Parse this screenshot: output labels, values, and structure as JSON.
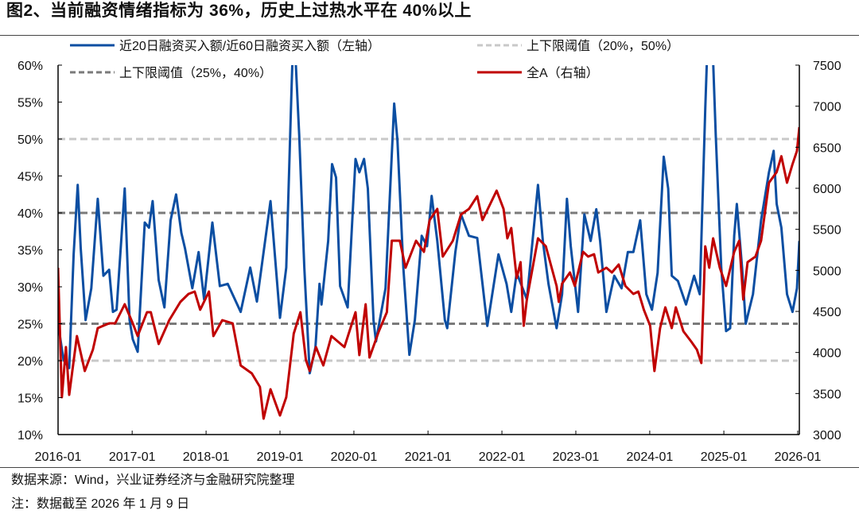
{
  "header": {
    "title": "图2、当前融资情绪指标为 36%，历史上过热水平在 40%以上"
  },
  "footer": {
    "source": "数据来源：Wind，兴业证券经济与金融研究院整理",
    "note": "注：数据截至 2026 年 1 月 9 日"
  },
  "colors": {
    "blue": "#0b4ea2",
    "red": "#c00000",
    "light_gray": "#c8c8c8",
    "dark_gray": "#7a7a7a"
  },
  "chart_data": {
    "type": "line",
    "title": "",
    "xlabel": "",
    "ylabel": "",
    "legend_placement": "top",
    "grid": false,
    "x_ticks": [
      "2016-01",
      "2017-01",
      "2018-01",
      "2019-01",
      "2020-01",
      "2021-01",
      "2022-01",
      "2023-01",
      "2024-01",
      "2025-01",
      "2026-01"
    ],
    "ylim_left": [
      10,
      60
    ],
    "y_ticks_left": [
      "10%",
      "15%",
      "20%",
      "25%",
      "30%",
      "35%",
      "40%",
      "45%",
      "50%",
      "55%",
      "60%"
    ],
    "ylim_right": [
      3000,
      7500
    ],
    "y_ticks_right": [
      "3000",
      "3500",
      "4000",
      "4500",
      "5000",
      "5500",
      "6000",
      "6500",
      "7000",
      "7500"
    ],
    "thresholds": [
      {
        "name": "上下限阈值（20%，50%）",
        "values": [
          20,
          50
        ],
        "style": "light-dashed"
      },
      {
        "name": "上下限阈值（25%，40%）",
        "values": [
          25,
          40
        ],
        "style": "dark-dashed"
      }
    ],
    "series": [
      {
        "name": "近20日融资买入额/近60日融资买入额（左轴）",
        "axis": "left",
        "unit": "%",
        "points": [
          [
            "2016-01-01",
            25.0
          ],
          [
            "2016-01-28",
            20.1
          ],
          [
            "2016-02-25",
            19.0
          ],
          [
            "2016-03-18",
            34.4
          ],
          [
            "2016-04-07",
            43.8
          ],
          [
            "2016-04-22",
            35.2
          ],
          [
            "2016-05-16",
            25.5
          ],
          [
            "2016-06-13",
            29.8
          ],
          [
            "2016-07-15",
            41.9
          ],
          [
            "2016-08-12",
            31.5
          ],
          [
            "2016-09-09",
            32.3
          ],
          [
            "2016-09-28",
            26.6
          ],
          [
            "2016-10-16",
            26.9
          ],
          [
            "2016-11-25",
            43.3
          ],
          [
            "2016-12-19",
            25.5
          ],
          [
            "2017-01-04",
            22.9
          ],
          [
            "2017-01-28",
            21.2
          ],
          [
            "2017-03-04",
            38.7
          ],
          [
            "2017-03-25",
            38.0
          ],
          [
            "2017-04-12",
            41.6
          ],
          [
            "2017-05-12",
            30.9
          ],
          [
            "2017-06-09",
            27.2
          ],
          [
            "2017-07-10",
            39.0
          ],
          [
            "2017-08-06",
            42.5
          ],
          [
            "2017-09-01",
            37.3
          ],
          [
            "2017-09-19",
            35.2
          ],
          [
            "2017-10-25",
            29.8
          ],
          [
            "2017-11-25",
            34.7
          ],
          [
            "2017-12-22",
            28.3
          ],
          [
            "2018-02-01",
            38.7
          ],
          [
            "2018-03-10",
            30.1
          ],
          [
            "2018-04-18",
            30.4
          ],
          [
            "2018-06-21",
            26.6
          ],
          [
            "2018-08-07",
            32.6
          ],
          [
            "2018-09-09",
            28.0
          ],
          [
            "2018-11-15",
            41.6
          ],
          [
            "2019-01-01",
            25.8
          ],
          [
            "2019-02-01",
            32.6
          ],
          [
            "2019-02-28",
            57.7
          ],
          [
            "2019-03-10",
            66.0
          ],
          [
            "2019-04-06",
            50.5
          ],
          [
            "2019-05-01",
            32.6
          ],
          [
            "2019-05-28",
            18.3
          ],
          [
            "2019-06-25",
            21.8
          ],
          [
            "2019-07-15",
            30.4
          ],
          [
            "2019-07-25",
            27.6
          ],
          [
            "2019-08-27",
            36.2
          ],
          [
            "2019-09-15",
            46.6
          ],
          [
            "2019-10-05",
            44.8
          ],
          [
            "2019-10-25",
            30.1
          ],
          [
            "2019-12-01",
            27.2
          ],
          [
            "2020-01-09",
            47.3
          ],
          [
            "2020-01-28",
            45.5
          ],
          [
            "2020-02-20",
            47.3
          ],
          [
            "2020-03-10",
            43.3
          ],
          [
            "2020-04-07",
            25.5
          ],
          [
            "2020-04-19",
            22.6
          ],
          [
            "2020-06-05",
            29.8
          ],
          [
            "2020-07-18",
            54.8
          ],
          [
            "2020-08-03",
            49.8
          ],
          [
            "2020-09-01",
            32.6
          ],
          [
            "2020-10-01",
            20.8
          ],
          [
            "2020-10-28",
            25.5
          ],
          [
            "2020-12-01",
            36.9
          ],
          [
            "2020-12-27",
            35.5
          ],
          [
            "2021-01-19",
            42.3
          ],
          [
            "2021-02-16",
            36.2
          ],
          [
            "2021-03-25",
            25.5
          ],
          [
            "2021-04-06",
            24.4
          ],
          [
            "2021-05-16",
            34.7
          ],
          [
            "2021-06-13",
            39.8
          ],
          [
            "2021-07-22",
            36.9
          ],
          [
            "2021-09-01",
            36.6
          ],
          [
            "2021-10-21",
            24.7
          ],
          [
            "2021-12-15",
            34.4
          ],
          [
            "2022-01-24",
            30.4
          ],
          [
            "2022-02-16",
            26.6
          ],
          [
            "2022-03-15",
            31.9
          ],
          [
            "2022-05-04",
            28.3
          ],
          [
            "2022-06-28",
            43.8
          ],
          [
            "2022-07-22",
            36.2
          ],
          [
            "2022-08-19",
            30.4
          ],
          [
            "2022-09-28",
            24.4
          ],
          [
            "2022-10-25",
            29.0
          ],
          [
            "2022-11-18",
            41.9
          ],
          [
            "2022-12-07",
            35.5
          ],
          [
            "2023-01-12",
            26.6
          ],
          [
            "2023-02-12",
            39.8
          ],
          [
            "2023-03-15",
            36.2
          ],
          [
            "2023-04-12",
            40.5
          ],
          [
            "2023-05-01",
            36.2
          ],
          [
            "2023-06-01",
            26.6
          ],
          [
            "2023-07-10",
            31.5
          ],
          [
            "2023-08-15",
            29.8
          ],
          [
            "2023-09-15",
            34.7
          ],
          [
            "2023-10-12",
            34.7
          ],
          [
            "2023-11-15",
            39.0
          ],
          [
            "2023-12-15",
            29.0
          ],
          [
            "2024-01-12",
            26.9
          ],
          [
            "2024-02-09",
            31.9
          ],
          [
            "2024-03-10",
            47.6
          ],
          [
            "2024-04-01",
            43.3
          ],
          [
            "2024-04-19",
            31.5
          ],
          [
            "2024-05-19",
            30.8
          ],
          [
            "2024-06-28",
            27.6
          ],
          [
            "2024-08-07",
            31.5
          ],
          [
            "2024-09-04",
            29.0
          ],
          [
            "2024-10-01",
            54.1
          ],
          [
            "2024-10-16",
            66.0
          ],
          [
            "2024-11-06",
            63.0
          ],
          [
            "2024-11-22",
            50.5
          ],
          [
            "2024-12-19",
            32.6
          ],
          [
            "2025-01-12",
            24.0
          ],
          [
            "2025-02-01",
            24.4
          ],
          [
            "2025-02-21",
            36.9
          ],
          [
            "2025-03-06",
            41.2
          ],
          [
            "2025-04-01",
            32.6
          ],
          [
            "2025-04-19",
            25.0
          ],
          [
            "2025-05-25",
            29.0
          ],
          [
            "2025-07-04",
            39.0
          ],
          [
            "2025-08-12",
            45.5
          ],
          [
            "2025-09-04",
            48.4
          ],
          [
            "2025-09-19",
            41.2
          ],
          [
            "2025-10-12",
            38.0
          ],
          [
            "2025-11-09",
            29.0
          ],
          [
            "2025-12-06",
            26.6
          ],
          [
            "2025-12-28",
            29.8
          ],
          [
            "2026-01-09",
            36.2
          ]
        ]
      },
      {
        "name": "全A（右轴）",
        "axis": "right",
        "points": [
          [
            "2016-01-01",
            5032
          ],
          [
            "2016-01-20",
            3455
          ],
          [
            "2016-02-09",
            4065
          ],
          [
            "2016-02-25",
            3484
          ],
          [
            "2016-04-03",
            4200
          ],
          [
            "2016-05-12",
            3774
          ],
          [
            "2016-06-21",
            4035
          ],
          [
            "2016-07-15",
            4297
          ],
          [
            "2016-09-09",
            4355
          ],
          [
            "2016-10-09",
            4355
          ],
          [
            "2016-11-25",
            4587
          ],
          [
            "2017-01-04",
            4355
          ],
          [
            "2017-01-28",
            4200
          ],
          [
            "2017-03-15",
            4490
          ],
          [
            "2017-04-03",
            4490
          ],
          [
            "2017-05-12",
            4103
          ],
          [
            "2017-07-03",
            4394
          ],
          [
            "2017-08-27",
            4616
          ],
          [
            "2017-10-06",
            4713
          ],
          [
            "2017-11-06",
            4742
          ],
          [
            "2017-12-03",
            4520
          ],
          [
            "2018-01-15",
            4742
          ],
          [
            "2018-02-06",
            4200
          ],
          [
            "2018-03-22",
            4394
          ],
          [
            "2018-05-12",
            4355
          ],
          [
            "2018-06-21",
            3842
          ],
          [
            "2018-08-15",
            3745
          ],
          [
            "2018-09-24",
            3581
          ],
          [
            "2018-10-12",
            3194
          ],
          [
            "2018-11-15",
            3552
          ],
          [
            "2019-01-01",
            3232
          ],
          [
            "2019-02-01",
            3455
          ],
          [
            "2019-03-10",
            4229
          ],
          [
            "2019-04-12",
            4490
          ],
          [
            "2019-05-09",
            3910
          ],
          [
            "2019-05-28",
            3774
          ],
          [
            "2019-06-28",
            4065
          ],
          [
            "2019-08-03",
            3842
          ],
          [
            "2019-09-12",
            4200
          ],
          [
            "2019-11-15",
            4065
          ],
          [
            "2020-01-09",
            4490
          ],
          [
            "2020-01-28",
            3968
          ],
          [
            "2020-02-28",
            4587
          ],
          [
            "2020-03-18",
            3939
          ],
          [
            "2020-05-03",
            4258
          ],
          [
            "2020-06-12",
            4490
          ],
          [
            "2020-07-06",
            5361
          ],
          [
            "2020-08-15",
            5361
          ],
          [
            "2020-09-12",
            5032
          ],
          [
            "2020-11-03",
            5361
          ],
          [
            "2020-12-12",
            5226
          ],
          [
            "2021-01-09",
            5613
          ],
          [
            "2021-02-16",
            5748
          ],
          [
            "2021-03-15",
            5168
          ],
          [
            "2021-05-04",
            5361
          ],
          [
            "2021-06-13",
            5681
          ],
          [
            "2021-07-22",
            5748
          ],
          [
            "2021-09-01",
            5903
          ],
          [
            "2021-09-27",
            5613
          ],
          [
            "2021-12-06",
            5971
          ],
          [
            "2022-01-09",
            5748
          ],
          [
            "2022-01-28",
            5390
          ],
          [
            "2022-02-16",
            5516
          ],
          [
            "2022-03-15",
            4906
          ],
          [
            "2022-04-03",
            5100
          ],
          [
            "2022-04-19",
            4326
          ],
          [
            "2022-05-04",
            4645
          ],
          [
            "2022-06-28",
            5390
          ],
          [
            "2022-08-06",
            5293
          ],
          [
            "2022-09-28",
            4810
          ],
          [
            "2022-10-09",
            4616
          ],
          [
            "2022-10-25",
            4839
          ],
          [
            "2022-12-03",
            4974
          ],
          [
            "2022-12-27",
            4810
          ],
          [
            "2023-02-06",
            5226
          ],
          [
            "2023-03-03",
            5168
          ],
          [
            "2023-04-01",
            5197
          ],
          [
            "2023-04-22",
            4974
          ],
          [
            "2023-06-01",
            5032
          ],
          [
            "2023-06-28",
            4974
          ],
          [
            "2023-08-01",
            5071
          ],
          [
            "2023-09-03",
            4810
          ],
          [
            "2023-10-12",
            4713
          ],
          [
            "2023-11-06",
            4742
          ],
          [
            "2023-12-03",
            4520
          ],
          [
            "2024-01-03",
            4326
          ],
          [
            "2024-01-24",
            3774
          ],
          [
            "2024-02-21",
            4297
          ],
          [
            "2024-03-18",
            4549
          ],
          [
            "2024-04-19",
            4297
          ],
          [
            "2024-05-09",
            4549
          ],
          [
            "2024-06-15",
            4258
          ],
          [
            "2024-07-24",
            4132
          ],
          [
            "2024-08-21",
            4035
          ],
          [
            "2024-09-12",
            3871
          ],
          [
            "2024-10-01",
            5293
          ],
          [
            "2024-10-21",
            5032
          ],
          [
            "2024-11-09",
            5390
          ],
          [
            "2024-12-12",
            5032
          ],
          [
            "2025-01-12",
            4810
          ],
          [
            "2025-02-21",
            5226
          ],
          [
            "2025-03-18",
            5361
          ],
          [
            "2025-04-07",
            4645
          ],
          [
            "2025-04-28",
            5100
          ],
          [
            "2025-06-06",
            5168
          ],
          [
            "2025-07-04",
            5361
          ],
          [
            "2025-08-12",
            6068
          ],
          [
            "2025-09-19",
            6197
          ],
          [
            "2025-10-12",
            6390
          ],
          [
            "2025-11-09",
            6068
          ],
          [
            "2025-12-06",
            6293
          ],
          [
            "2025-12-28",
            6455
          ],
          [
            "2026-01-09",
            6745
          ]
        ]
      }
    ]
  }
}
